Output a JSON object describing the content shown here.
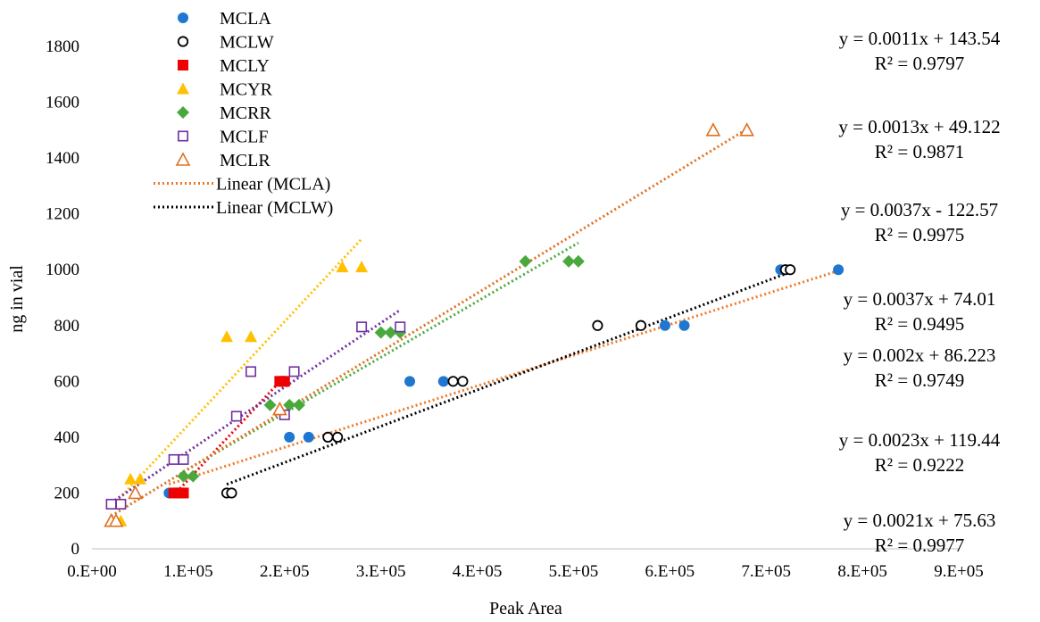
{
  "chart_data": {
    "type": "scatter",
    "xlabel": "Peak Area",
    "ylabel": "ng in vial",
    "xlim": [
      0,
      900000
    ],
    "ylim": [
      0,
      1800
    ],
    "x_ticks": [
      0,
      100000,
      200000,
      300000,
      400000,
      500000,
      600000,
      700000,
      800000,
      900000
    ],
    "x_tick_labels": [
      "0.E+00",
      "1.E+05",
      "2.E+05",
      "3.E+05",
      "4.E+05",
      "5.E+05",
      "6.E+05",
      "7.E+05",
      "8.E+05",
      "9.E+05"
    ],
    "y_ticks": [
      0,
      200,
      400,
      600,
      800,
      1000,
      1200,
      1400,
      1600,
      1800
    ],
    "y_tick_labels": [
      "0",
      "200",
      "400",
      "600",
      "800",
      "1000",
      "1200",
      "1400",
      "1600",
      "1800"
    ],
    "grid": false,
    "legend_position": "top-left",
    "series": [
      {
        "name": "MCLA",
        "marker": "circle-filled",
        "color": "#1f77d0",
        "x": [
          80000,
          95000,
          205000,
          225000,
          330000,
          365000,
          595000,
          615000,
          715000,
          775000
        ],
        "y": [
          200,
          200,
          400,
          400,
          600,
          600,
          800,
          800,
          1000,
          1000
        ]
      },
      {
        "name": "MCLW",
        "marker": "circle-open",
        "color": "#000000",
        "x": [
          140000,
          145000,
          245000,
          255000,
          375000,
          385000,
          525000,
          570000,
          720000,
          725000
        ],
        "y": [
          200,
          200,
          400,
          400,
          600,
          600,
          800,
          800,
          1000,
          1000
        ]
      },
      {
        "name": "MCLY",
        "marker": "square-filled",
        "color": "#ee0000",
        "x": [
          85000,
          90000,
          95000,
          195000,
          200000
        ],
        "y": [
          200,
          200,
          200,
          600,
          600
        ]
      },
      {
        "name": "MCYR",
        "marker": "triangle-filled",
        "color": "#ffc000",
        "x": [
          25000,
          30000,
          40000,
          50000,
          140000,
          165000,
          260000,
          280000
        ],
        "y": [
          100,
          100,
          250,
          250,
          760,
          760,
          1010,
          1010
        ]
      },
      {
        "name": "MCRR",
        "marker": "diamond-filled",
        "color": "#4aa93c",
        "x": [
          95000,
          105000,
          185000,
          205000,
          215000,
          300000,
          310000,
          320000,
          450000,
          495000,
          505000
        ],
        "y": [
          260,
          260,
          515,
          515,
          515,
          775,
          775,
          775,
          1030,
          1030,
          1030
        ]
      },
      {
        "name": "MCLF",
        "marker": "square-open",
        "color": "#7030a0",
        "x": [
          20000,
          30000,
          85000,
          95000,
          150000,
          165000,
          200000,
          210000,
          280000,
          320000
        ],
        "y": [
          160,
          160,
          320,
          320,
          475,
          635,
          480,
          635,
          795,
          795
        ]
      },
      {
        "name": "MCLR",
        "marker": "triangle-open",
        "color": "#e07020",
        "x": [
          20000,
          25000,
          45000,
          195000,
          645000,
          680000
        ],
        "y": [
          100,
          100,
          200,
          500,
          1500,
          1500
        ]
      }
    ],
    "trendlines": [
      {
        "name": "Linear (MCLA)",
        "color": "#f07a28",
        "slope": 0.0011,
        "intercept": 143.54,
        "x_range": [
          80000,
          775000
        ],
        "in_legend": true
      },
      {
        "name": "Linear (MCLW)",
        "color": "#000000",
        "slope": 0.0013,
        "intercept": 49.122,
        "x_range": [
          140000,
          725000
        ],
        "in_legend": true
      },
      {
        "name": "",
        "color": "#ee0000",
        "slope": 0.0037,
        "intercept": -122.57,
        "x_range": [
          85000,
          200000
        ],
        "in_legend": false
      },
      {
        "name": "",
        "color": "#ffc000",
        "slope": 0.0037,
        "intercept": 74.01,
        "x_range": [
          25000,
          280000
        ],
        "in_legend": false
      },
      {
        "name": "",
        "color": "#4aa93c",
        "slope": 0.002,
        "intercept": 86.223,
        "x_range": [
          95000,
          505000
        ],
        "in_legend": false
      },
      {
        "name": "",
        "color": "#7030a0",
        "slope": 0.0023,
        "intercept": 119.44,
        "x_range": [
          20000,
          320000
        ],
        "in_legend": false
      },
      {
        "name": "",
        "color": "#e07020",
        "slope": 0.0021,
        "intercept": 75.63,
        "x_range": [
          20000,
          680000
        ],
        "in_legend": false
      }
    ],
    "annotations": [
      {
        "eq": "y = 0.0011x + 143.54",
        "r2": "R² = 0.9797"
      },
      {
        "eq": "y = 0.0013x + 49.122",
        "r2": "R² = 0.9871"
      },
      {
        "eq": "y = 0.0037x - 122.57",
        "r2": "R² = 0.9975"
      },
      {
        "eq": "y = 0.0037x + 74.01",
        "r2": "R² = 0.9495"
      },
      {
        "eq": "y = 0.002x + 86.223",
        "r2": "R² = 0.9749"
      },
      {
        "eq": "y = 0.0023x + 119.44",
        "r2": "R² = 0.9222"
      },
      {
        "eq": "y = 0.0021x + 75.63",
        "r2": "R² = 0.9977"
      }
    ]
  }
}
